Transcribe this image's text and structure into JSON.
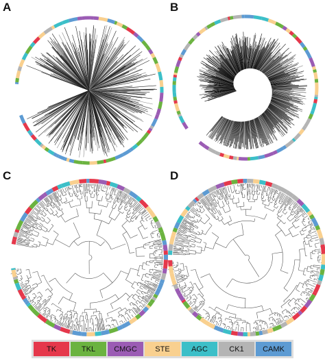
{
  "panels": [
    {
      "label": "A"
    },
    {
      "label": "B"
    },
    {
      "label": "C"
    },
    {
      "label": "D"
    }
  ],
  "legend": {
    "items": [
      {
        "label": "TK",
        "color": "#e5384b"
      },
      {
        "label": "TKL",
        "color": "#6bb340"
      },
      {
        "label": "CMGC",
        "color": "#9b5cb4"
      },
      {
        "label": "STE",
        "color": "#f9d08f"
      },
      {
        "label": "AGC",
        "color": "#3cbfc8"
      },
      {
        "label": "CK1",
        "color": "#b4b4b4"
      },
      {
        "label": "CAMK",
        "color": "#5d9bd3"
      }
    ]
  }
}
